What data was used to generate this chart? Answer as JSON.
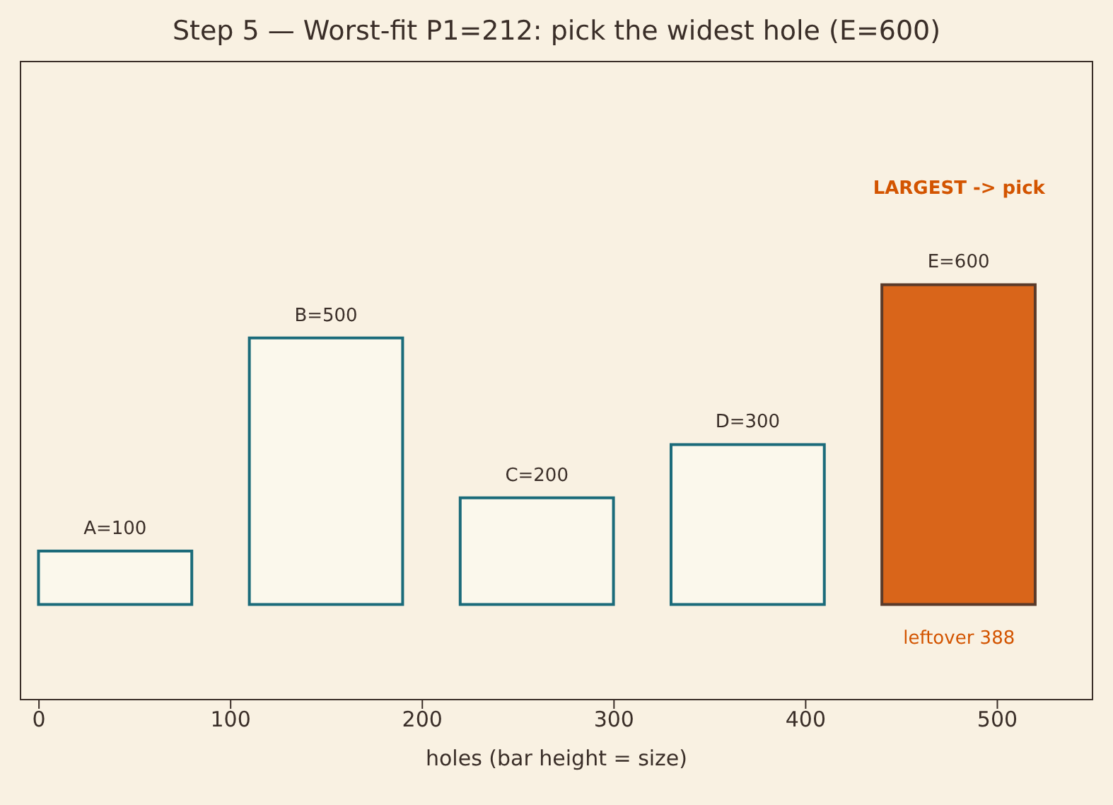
{
  "chart_data": {
    "type": "bar",
    "title": "Step 5 — Worst-fit P1=212: pick the widest hole (E=600)",
    "xlabel": "holes (bar height = size)",
    "x": [
      40,
      150,
      260,
      370,
      480
    ],
    "values": [
      100,
      500,
      200,
      300,
      600
    ],
    "value_labels": [
      "A=100",
      "B=500",
      "C=200",
      "D=300",
      "E=600"
    ],
    "colors": [
      "#fbf8ec",
      "#fbf8ec",
      "#fbf8ec",
      "#fbf8ec",
      "#d9651a"
    ],
    "xlim": [
      -10,
      550
    ],
    "xticks": [
      0,
      100,
      200,
      300,
      400,
      500
    ],
    "annotations": [
      "LARGEST -> pick",
      {
        "text": "leftover 388",
        "x": 480,
        "y": 0
      }
    ],
    "grid": false,
    "legend": false
  }
}
